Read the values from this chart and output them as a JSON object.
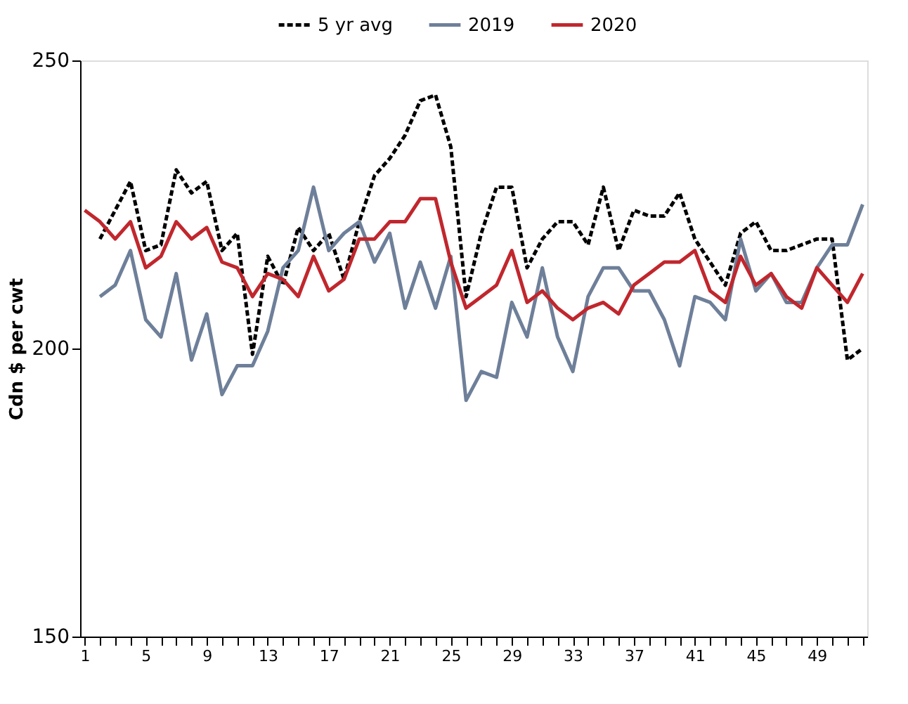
{
  "chart_data": {
    "type": "line",
    "ylabel": "Cdn $ per cwt",
    "categories": [
      "1",
      null,
      null,
      null,
      "5",
      null,
      null,
      null,
      "9",
      null,
      null,
      null,
      "13",
      null,
      null,
      null,
      "17",
      null,
      null,
      null,
      "21",
      null,
      null,
      null,
      "25",
      null,
      null,
      null,
      "29",
      null,
      null,
      null,
      "33",
      null,
      null,
      null,
      "37",
      null,
      null,
      null,
      "41",
      null,
      null,
      null,
      "45",
      null,
      null,
      null,
      "49",
      null,
      null,
      null
    ],
    "ylim": [
      150,
      250
    ],
    "yticks": [
      150,
      200,
      250
    ],
    "grid": false,
    "legend": "top",
    "marker": "none",
    "series": [
      {
        "name": "5 yr avg",
        "color": "#000000",
        "line_style": "dashed",
        "values": [
          null,
          219,
          224,
          229,
          217,
          218,
          231,
          227,
          229,
          217,
          220,
          199,
          216,
          211,
          221,
          217,
          220,
          212,
          222,
          230,
          233,
          237,
          243,
          244,
          235,
          209,
          220,
          228,
          228,
          214,
          219,
          222,
          222,
          218,
          228,
          217,
          224,
          223,
          223,
          227,
          219,
          215,
          211,
          220,
          222,
          217,
          217,
          218,
          219,
          219,
          198,
          200
        ]
      },
      {
        "name": "2019",
        "color": "#6e7f99",
        "line_style": "solid",
        "values": [
          null,
          209,
          211,
          217,
          205,
          202,
          213,
          198,
          206,
          192,
          197,
          197,
          203,
          214,
          217,
          228,
          217,
          220,
          222,
          215,
          220,
          207,
          215,
          207,
          216,
          191,
          196,
          195,
          208,
          202,
          214,
          202,
          196,
          209,
          214,
          214,
          210,
          210,
          205,
          197,
          209,
          208,
          205,
          219,
          210,
          213,
          208,
          208,
          214,
          218,
          218,
          225
        ]
      },
      {
        "name": "2020",
        "color": "#c0272d",
        "line_style": "solid",
        "values": [
          224,
          222,
          219,
          222,
          214,
          216,
          222,
          219,
          221,
          215,
          214,
          209,
          213,
          212,
          209,
          216,
          210,
          212,
          219,
          219,
          222,
          222,
          226,
          226,
          215,
          207,
          209,
          211,
          217,
          208,
          210,
          207,
          205,
          207,
          208,
          206,
          211,
          213,
          215,
          215,
          217,
          210,
          208,
          216,
          211,
          213,
          209,
          207,
          214,
          211,
          208,
          213
        ]
      }
    ]
  }
}
